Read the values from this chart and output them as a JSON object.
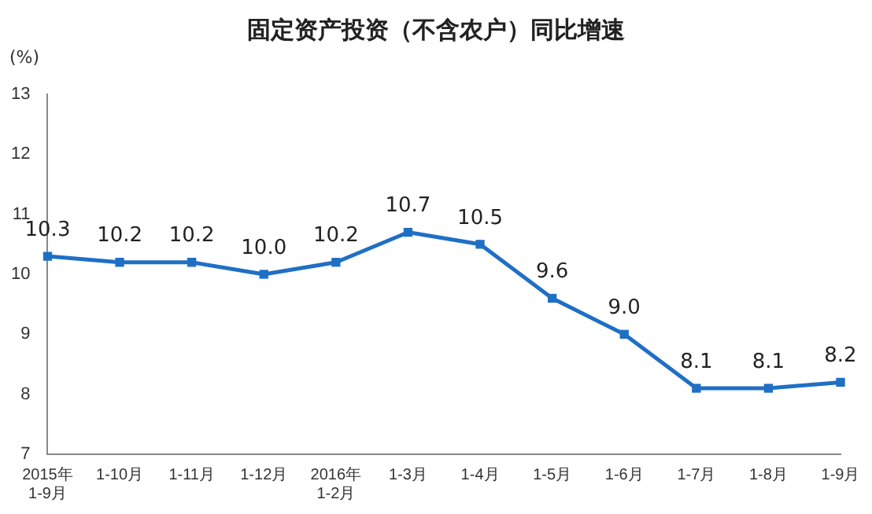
{
  "chart_data": {
    "type": "line",
    "title": "固定资产投资（不含农户）同比增速",
    "ylabel": "(%)",
    "categories": [
      "2015年\n1-9月",
      "1-10月",
      "1-11月",
      "1-12月",
      "2016年\n1-2月",
      "1-3月",
      "1-4月",
      "1-5月",
      "1-6月",
      "1-7月",
      "1-8月",
      "1-9月"
    ],
    "series": [
      {
        "color": "#1f6fc5",
        "values": [
          10.3,
          10.2,
          10.2,
          10.0,
          10.2,
          10.7,
          10.5,
          9.6,
          9.0,
          8.1,
          8.1,
          8.2
        ],
        "value_labels": [
          "10.3",
          "10.2",
          "10.2",
          "10.0",
          "10.2",
          "10.7",
          "10.5",
          "9.6",
          "9.0",
          "8.1",
          "8.1",
          "8.2"
        ]
      }
    ],
    "ylim": [
      7,
      13
    ],
    "yticks": [
      7,
      8,
      9,
      10,
      11,
      12,
      13
    ],
    "grid": false,
    "legend": false,
    "marker": "square",
    "line_style": "solid"
  }
}
